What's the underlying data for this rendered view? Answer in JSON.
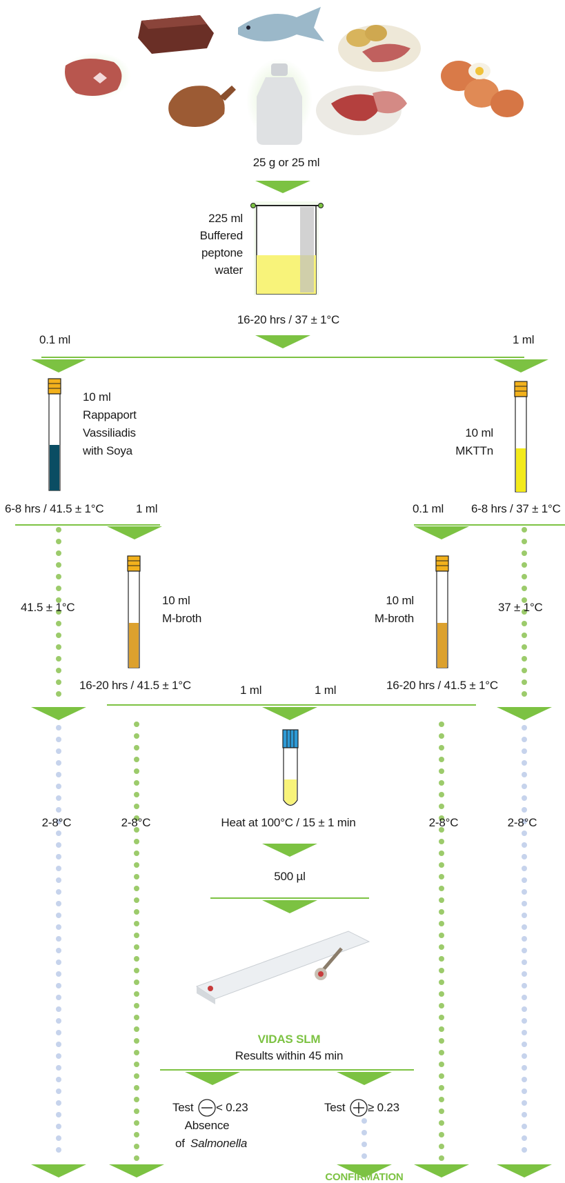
{
  "sample": {
    "amount": "25 g or 25 ml"
  },
  "bag": {
    "line1": "225 ml",
    "line2": "Buffered",
    "line3": "peptone",
    "line4": "water",
    "incubation": "16-20 hrs / 37 ± 1°C"
  },
  "split": {
    "left_volume": "0.1 ml",
    "right_volume": "1 ml"
  },
  "left_tube": {
    "line1": "10 ml",
    "line2": "Rappaport",
    "line3": "Vassiliadis",
    "line4": "with Soya",
    "incubation": "6-8 hrs / 41.5 ± 1°C",
    "transfer": "1 ml"
  },
  "right_tube": {
    "line1": "10 ml",
    "line2": "MKTTn",
    "incubation": "6-8 hrs / 37 ± 1°C",
    "transfer": "0.1 ml"
  },
  "left_side_temp": "41.5 ± 1°C",
  "right_side_temp": "37 ± 1°C",
  "left_mbroth": {
    "line1": "10 ml",
    "line2": "M-broth",
    "incubation": "16-20 hrs / 41.5 ± 1°C"
  },
  "right_mbroth": {
    "line1": "10 ml",
    "line2": "M-broth",
    "incubation": "16-20 hrs / 41.5 ± 1°C"
  },
  "pool": {
    "left_volume": "1 ml",
    "right_volume": "1 ml"
  },
  "storage": {
    "c1": "2-8°C",
    "c2": "2-8°C",
    "c3": "2-8°C",
    "c4": "2-8°C"
  },
  "heat": "Heat at 100°C / 15 ± 1 min",
  "aliquot": "500 µl",
  "vidas": {
    "title": "VIDAS SLM",
    "subtitle": "Results within 45 min"
  },
  "negative": {
    "test": "Test",
    "threshold": "< 0.23",
    "absence": "Absence",
    "of": "of",
    "organism": "Salmonella"
  },
  "positive": {
    "test": "Test",
    "threshold": "≥ 0.23"
  },
  "confirmation": "CONFIRMATION",
  "colors": {
    "green": "#7cc242",
    "green_dot": "#9ccb6b",
    "blue_dot": "#c6d3ec",
    "teal_medium": "#0a4d63",
    "yellow_medium": "#f3ea1a",
    "amber_medium": "#dca12e",
    "bag_yellow": "#f8f37a"
  },
  "icons": [
    "beef-steak-icon",
    "liver-icon",
    "fish-icon",
    "meat-platter-icon",
    "chicken-icon",
    "milk-bottle-icon",
    "cured-meat-plate-icon",
    "eggs-icon"
  ]
}
